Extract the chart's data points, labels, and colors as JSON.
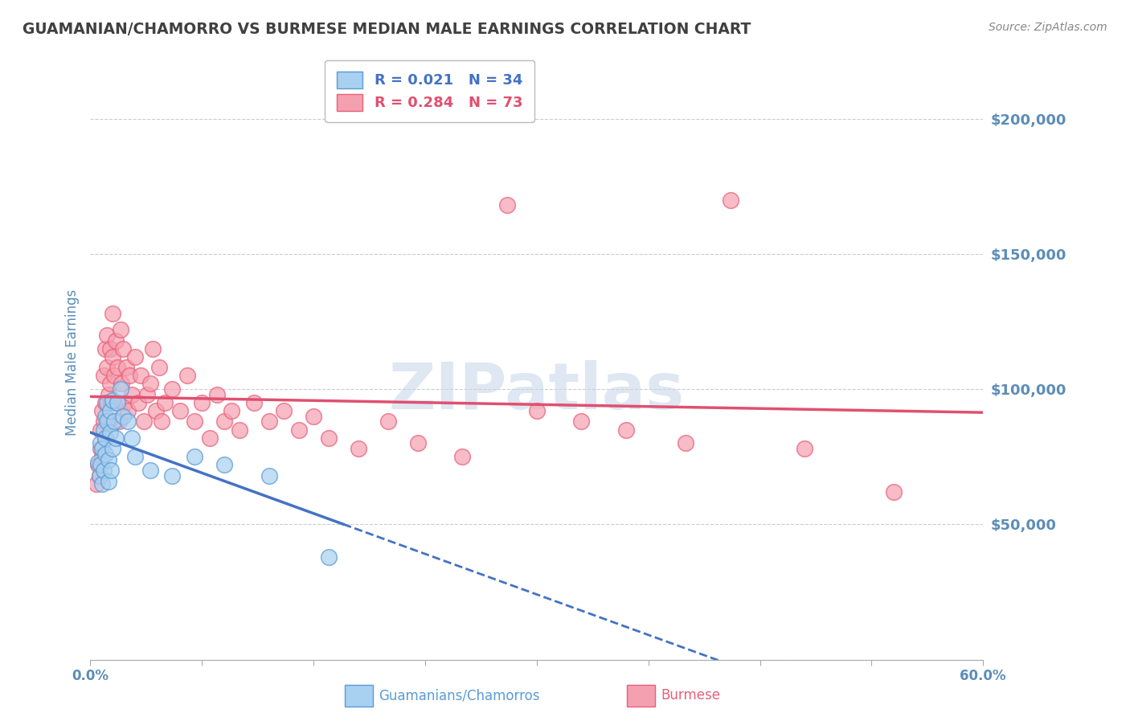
{
  "title": "GUAMANIAN/CHAMORRO VS BURMESE MEDIAN MALE EARNINGS CORRELATION CHART",
  "source": "Source: ZipAtlas.com",
  "ylabel": "Median Male Earnings",
  "yticks": [
    0,
    50000,
    100000,
    150000,
    200000
  ],
  "ytick_labels": [
    "",
    "$50,000",
    "$100,000",
    "$150,000",
    "$200,000"
  ],
  "xlim": [
    0.0,
    0.6
  ],
  "ylim": [
    0,
    220000
  ],
  "guamanian_R": "0.021",
  "guamanian_N": "34",
  "burmese_R": "0.284",
  "burmese_N": "73",
  "guamanian_color": "#A8D0F0",
  "burmese_color": "#F5A0B0",
  "guamanian_edge_color": "#5B9BD5",
  "burmese_edge_color": "#E8607A",
  "guamanian_line_color": "#4472C4",
  "burmese_line_color": "#E05070",
  "title_color": "#404040",
  "ylabel_color": "#5B8DB8",
  "tick_color": "#5B8DB8",
  "source_color": "#888888",
  "watermark_color": "#C8D8EA",
  "background_color": "#FFFFFF",
  "grid_color": "#CCCCCC",
  "legend_text_blue": "#4472C4",
  "legend_text_pink": "#E05070",
  "guamanian_x": [
    0.005,
    0.006,
    0.007,
    0.007,
    0.008,
    0.008,
    0.009,
    0.009,
    0.01,
    0.01,
    0.01,
    0.011,
    0.011,
    0.012,
    0.012,
    0.013,
    0.013,
    0.014,
    0.015,
    0.015,
    0.016,
    0.017,
    0.018,
    0.02,
    0.022,
    0.025,
    0.028,
    0.03,
    0.04,
    0.055,
    0.07,
    0.09,
    0.12,
    0.16
  ],
  "guamanian_y": [
    73000,
    68000,
    80000,
    72000,
    65000,
    78000,
    85000,
    70000,
    90000,
    82000,
    76000,
    95000,
    88000,
    74000,
    66000,
    92000,
    84000,
    70000,
    96000,
    78000,
    88000,
    82000,
    95000,
    100000,
    90000,
    88000,
    82000,
    75000,
    70000,
    68000,
    75000,
    72000,
    68000,
    38000
  ],
  "burmese_x": [
    0.004,
    0.005,
    0.006,
    0.007,
    0.007,
    0.008,
    0.008,
    0.009,
    0.009,
    0.01,
    0.01,
    0.01,
    0.011,
    0.011,
    0.012,
    0.012,
    0.013,
    0.013,
    0.014,
    0.015,
    0.015,
    0.016,
    0.017,
    0.018,
    0.018,
    0.019,
    0.02,
    0.021,
    0.022,
    0.023,
    0.024,
    0.025,
    0.026,
    0.028,
    0.03,
    0.032,
    0.034,
    0.036,
    0.038,
    0.04,
    0.042,
    0.044,
    0.046,
    0.048,
    0.05,
    0.055,
    0.06,
    0.065,
    0.07,
    0.075,
    0.08,
    0.085,
    0.09,
    0.095,
    0.1,
    0.11,
    0.12,
    0.13,
    0.14,
    0.15,
    0.16,
    0.18,
    0.2,
    0.22,
    0.25,
    0.28,
    0.3,
    0.33,
    0.36,
    0.4,
    0.43,
    0.48,
    0.54
  ],
  "burmese_y": [
    65000,
    72000,
    68000,
    78000,
    85000,
    92000,
    75000,
    105000,
    88000,
    115000,
    95000,
    82000,
    120000,
    108000,
    98000,
    88000,
    115000,
    102000,
    95000,
    128000,
    112000,
    105000,
    118000,
    95000,
    108000,
    88000,
    122000,
    102000,
    115000,
    95000,
    108000,
    92000,
    105000,
    98000,
    112000,
    95000,
    105000,
    88000,
    98000,
    102000,
    115000,
    92000,
    108000,
    88000,
    95000,
    100000,
    92000,
    105000,
    88000,
    95000,
    82000,
    98000,
    88000,
    92000,
    85000,
    95000,
    88000,
    92000,
    85000,
    90000,
    82000,
    78000,
    88000,
    80000,
    75000,
    168000,
    92000,
    88000,
    85000,
    80000,
    170000,
    78000,
    62000
  ]
}
